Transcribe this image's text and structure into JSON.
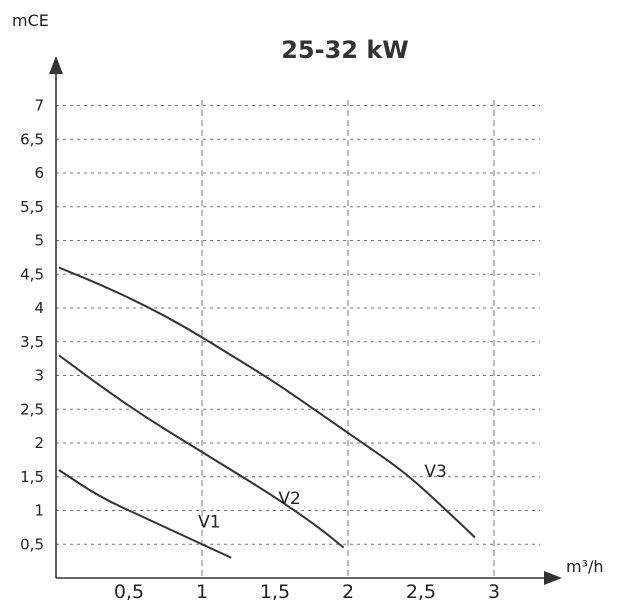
{
  "chart_data": {
    "type": "line",
    "title": "25-32 kW",
    "xlabel": "m³/h",
    "ylabel": "mCE",
    "xlim": [
      0,
      3.2
    ],
    "ylim": [
      0,
      7.3
    ],
    "grid": true,
    "x_ticks": [
      {
        "value": 0.5,
        "label": "0,5"
      },
      {
        "value": 1,
        "label": "1"
      },
      {
        "value": 1.5,
        "label": "1,5"
      },
      {
        "value": 2,
        "label": "2"
      },
      {
        "value": 2.5,
        "label": "2,5"
      },
      {
        "value": 3,
        "label": "3"
      }
    ],
    "y_ticks": [
      {
        "value": 0.5,
        "label": "0,5"
      },
      {
        "value": 1,
        "label": "1"
      },
      {
        "value": 1.5,
        "label": "1,5"
      },
      {
        "value": 2,
        "label": "2"
      },
      {
        "value": 2.5,
        "label": "2,5"
      },
      {
        "value": 3,
        "label": "3"
      },
      {
        "value": 3.5,
        "label": "3,5"
      },
      {
        "value": 4,
        "label": "4"
      },
      {
        "value": 4.5,
        "label": "4,5"
      },
      {
        "value": 5,
        "label": "5"
      },
      {
        "value": 5.5,
        "label": "5,5"
      },
      {
        "value": 6,
        "label": "6"
      },
      {
        "value": 6.5,
        "label": "6,5"
      },
      {
        "value": 7,
        "label": "7"
      }
    ],
    "series": [
      {
        "name": "V1",
        "x": [
          0.02,
          0.3,
          0.6,
          0.9,
          1.2
        ],
        "y": [
          1.6,
          1.2,
          0.9,
          0.6,
          0.3
        ],
        "label_at": [
          1.05,
          0.75
        ]
      },
      {
        "name": "V2",
        "x": [
          0.02,
          0.3,
          0.6,
          0.9,
          1.2,
          1.5,
          1.8,
          1.97
        ],
        "y": [
          3.3,
          2.85,
          2.4,
          2.0,
          1.6,
          1.2,
          0.75,
          0.45
        ],
        "label_at": [
          1.6,
          1.1
        ]
      },
      {
        "name": "V3",
        "x": [
          0.02,
          0.3,
          0.6,
          0.9,
          1.2,
          1.5,
          1.8,
          2.1,
          2.4,
          2.7,
          2.87
        ],
        "y": [
          4.6,
          4.35,
          4.05,
          3.7,
          3.3,
          2.9,
          2.45,
          2.0,
          1.55,
          0.95,
          0.6
        ],
        "label_at": [
          2.6,
          1.5
        ]
      }
    ]
  }
}
